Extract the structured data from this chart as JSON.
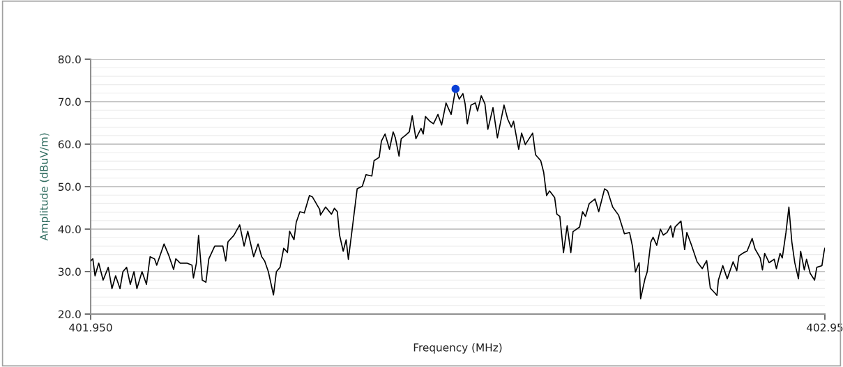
{
  "chart_data": {
    "type": "line",
    "xlabel": "Frequency (MHz)",
    "ylabel": "Amplitude (dBuV/m)",
    "xlim": [
      401.95,
      402.95
    ],
    "ylim": [
      20,
      80
    ],
    "xticks": [
      {
        "value": 401.95,
        "label": "401.950"
      },
      {
        "value": 402.95,
        "label": "402.95"
      }
    ],
    "yticks": [
      {
        "value": 20,
        "label": "20.0"
      },
      {
        "value": 30,
        "label": "30.0"
      },
      {
        "value": 40,
        "label": "40.0"
      },
      {
        "value": 50,
        "label": "50.0"
      },
      {
        "value": 60,
        "label": "60.0"
      },
      {
        "value": 70,
        "label": "70.0"
      },
      {
        "value": 80,
        "label": "80.0"
      }
    ],
    "grid": "y",
    "legend": false,
    "series": [
      {
        "color": "#000000",
        "marker": "none",
        "x": [
          401.95,
          401.953,
          401.956,
          401.961,
          401.967,
          401.974,
          401.979,
          401.984,
          401.99,
          401.994,
          401.999,
          402.004,
          402.009,
          402.013,
          402.02,
          402.026,
          402.031,
          402.037,
          402.04,
          402.05,
          402.056,
          402.063,
          402.066,
          402.072,
          402.081,
          402.088,
          402.09,
          402.094,
          402.097,
          402.102,
          402.107,
          402.111,
          402.119,
          402.13,
          402.134,
          402.137,
          402.145,
          402.153,
          402.159,
          402.164,
          402.172,
          402.178,
          402.183,
          402.187,
          402.192,
          402.199,
          402.203,
          402.208,
          402.213,
          402.218,
          402.221,
          402.227,
          402.23,
          402.235,
          402.241,
          402.248,
          402.252,
          402.262,
          402.263,
          402.27,
          402.278,
          402.282,
          402.286,
          402.289,
          402.294,
          402.298,
          402.301,
          402.306,
          402.313,
          402.32,
          402.325,
          402.333,
          402.336,
          402.343,
          402.346,
          402.351,
          402.357,
          402.362,
          402.365,
          402.37,
          402.373,
          402.379,
          402.384,
          402.388,
          402.393,
          402.4,
          402.403,
          402.406,
          402.412,
          402.417,
          402.423,
          402.428,
          402.434,
          402.441,
          402.447,
          402.452,
          402.457,
          402.46,
          402.463,
          402.468,
          402.474,
          402.477,
          402.482,
          402.487,
          402.491,
          402.498,
          402.504,
          402.513,
          402.518,
          402.523,
          402.526,
          402.533,
          402.537,
          402.542,
          402.552,
          402.556,
          402.563,
          402.567,
          402.571,
          402.575,
          402.582,
          402.585,
          402.589,
          402.594,
          402.599,
          402.604,
          402.607,
          402.616,
          402.62,
          402.624,
          402.629,
          402.637,
          402.642,
          402.65,
          402.654,
          402.661,
          402.669,
          402.677,
          402.684,
          402.688,
          402.692,
          402.697,
          402.699,
          402.705,
          402.708,
          402.713,
          402.716,
          402.721,
          402.726,
          402.73,
          402.735,
          402.74,
          402.743,
          402.746,
          402.754,
          402.759,
          402.762,
          402.768,
          402.776,
          402.783,
          402.789,
          402.794,
          402.8,
          402.803,
          402.805,
          402.811,
          402.817,
          402.825,
          402.83,
          402.833,
          402.84,
          402.844,
          402.851,
          402.855,
          402.862,
          402.865,
          402.868,
          402.874,
          402.881,
          402.884,
          402.889,
          402.892,
          402.897,
          402.901,
          402.905,
          402.909,
          402.914,
          402.917,
          402.922,
          402.925,
          402.93,
          402.936,
          402.939,
          402.946,
          402.949,
          402.95
        ],
        "values": [
          32.5,
          33,
          29,
          32,
          28,
          31,
          26,
          29,
          26,
          30,
          31,
          27,
          30,
          26,
          30,
          27,
          33.5,
          33,
          31.5,
          36.5,
          34,
          30.5,
          33,
          32,
          32,
          31.5,
          28.5,
          32,
          38.5,
          28,
          27.5,
          33,
          36,
          36,
          32.5,
          37,
          38.5,
          41,
          36,
          39.5,
          33.5,
          36.5,
          33.5,
          32.5,
          30,
          24.5,
          30,
          31,
          35.5,
          34.5,
          39.5,
          37.5,
          41.6,
          44.1,
          43.8,
          47.9,
          47.6,
          44.6,
          43.3,
          45.2,
          43.5,
          44.9,
          44.1,
          38.6,
          34.8,
          37.5,
          32.9,
          39.7,
          49.5,
          50.1,
          52.8,
          52.5,
          56.1,
          56.9,
          60.7,
          62.4,
          58.8,
          62.9,
          61.5,
          57.2,
          61.3,
          62.1,
          62.9,
          66.7,
          61.3,
          63.7,
          62.4,
          66.5,
          65.4,
          64.8,
          67,
          64.5,
          69.7,
          67,
          73,
          70.6,
          71.9,
          69.5,
          64.8,
          69.2,
          69.7,
          67.8,
          71.4,
          69.5,
          63.5,
          68.6,
          61.5,
          69.2,
          65.9,
          64,
          65.4,
          58.8,
          62.6,
          59.9,
          62.6,
          57.5,
          56.1,
          53.4,
          47.9,
          49,
          47.4,
          43.5,
          43,
          34.5,
          40.8,
          34.5,
          39.4,
          40.5,
          44.1,
          43,
          46,
          47.1,
          44.1,
          49.5,
          49,
          45.2,
          43.3,
          38.9,
          39.2,
          35.9,
          29.9,
          32.1,
          23.6,
          28.3,
          29.9,
          37,
          38.1,
          36.2,
          40,
          38.6,
          39.2,
          40.8,
          38.1,
          40.5,
          41.9,
          35.2,
          39.2,
          36.4,
          32.3,
          30.7,
          32.6,
          26.1,
          25,
          24.4,
          28,
          31.4,
          28.3,
          32.3,
          30.2,
          33.7,
          34.5,
          34.8,
          37.8,
          35.3,
          33.2,
          30.4,
          34.3,
          32.1,
          32.9,
          30.7,
          34.3,
          33.2,
          39.2,
          45.2,
          37,
          32.1,
          28.3,
          34.8,
          30.4,
          32.9,
          29.6,
          28,
          31,
          31.4,
          34.8,
          35.5
        ]
      },
      {
        "type": "scatter",
        "color": "#0a3fd6",
        "marker": "circle",
        "x": [
          402.447
        ],
        "values": [
          73
        ]
      }
    ]
  }
}
